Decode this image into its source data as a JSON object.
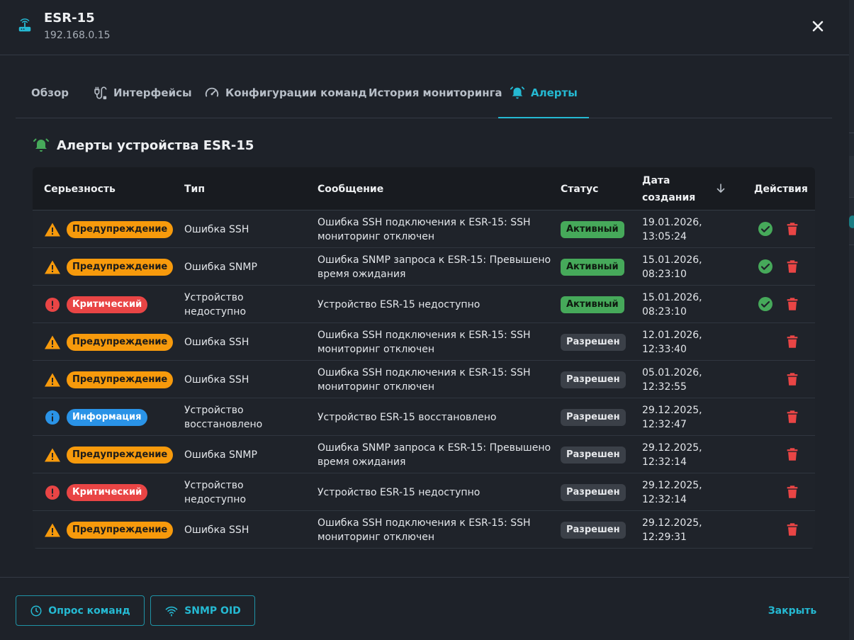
{
  "device": {
    "name": "ESR-15",
    "ip": "192.168.0.15"
  },
  "tabs": [
    {
      "label": "Обзор",
      "icon": "none",
      "active": false
    },
    {
      "label": "Интерфейсы",
      "icon": "cable-icon",
      "active": false
    },
    {
      "label": "Конфигурации команд",
      "icon": "speedometer-icon",
      "active": false
    },
    {
      "label": "История мониторинга",
      "icon": "none",
      "active": false
    },
    {
      "label": "Алерты",
      "icon": "alarm-bell-icon",
      "active": true
    }
  ],
  "section": {
    "title": "Алерты устройства ESR-15"
  },
  "table": {
    "headers": {
      "severity": "Серьезность",
      "type": "Тип",
      "message": "Сообщение",
      "status": "Статус",
      "date_line1": "Дата",
      "date_line2": "создания",
      "actions": "Действия"
    },
    "rows": [
      {
        "severity": "Предупреждение",
        "severity_kind": "warning",
        "type": "Ошибка SSH",
        "message": "Ошибка SSH подключения к ESR-15: SSH мониторинг отключен",
        "status": "Активный",
        "status_kind": "active",
        "date_line1": "19.01.2026,",
        "date_line2": "13:05:24"
      },
      {
        "severity": "Предупреждение",
        "severity_kind": "warning",
        "type": "Ошибка SNMP",
        "message": "Ошибка SNMP запроса к ESR-15: Превышено время ожидания",
        "status": "Активный",
        "status_kind": "active",
        "date_line1": "15.01.2026,",
        "date_line2": "08:23:10"
      },
      {
        "severity": "Критический",
        "severity_kind": "critical",
        "type": "Устройство недоступно",
        "message": "Устройство ESR-15 недоступно",
        "status": "Активный",
        "status_kind": "active",
        "date_line1": "15.01.2026,",
        "date_line2": "08:23:10"
      },
      {
        "severity": "Предупреждение",
        "severity_kind": "warning",
        "type": "Ошибка SSH",
        "message": "Ошибка SSH подключения к ESR-15: SSH мониторинг отключен",
        "status": "Разрешен",
        "status_kind": "resolved",
        "date_line1": "12.01.2026,",
        "date_line2": "12:33:40"
      },
      {
        "severity": "Предупреждение",
        "severity_kind": "warning",
        "type": "Ошибка SSH",
        "message": "Ошибка SSH подключения к ESR-15: SSH мониторинг отключен",
        "status": "Разрешен",
        "status_kind": "resolved",
        "date_line1": "05.01.2026,",
        "date_line2": "12:32:55"
      },
      {
        "severity": "Информация",
        "severity_kind": "info",
        "type": "Устройство восстановлено",
        "message": "Устройство ESR-15 восстановлено",
        "status": "Разрешен",
        "status_kind": "resolved",
        "date_line1": "29.12.2025,",
        "date_line2": "12:32:47"
      },
      {
        "severity": "Предупреждение",
        "severity_kind": "warning",
        "type": "Ошибка SNMP",
        "message": "Ошибка SNMP запроса к ESR-15: Превышено время ожидания",
        "status": "Разрешен",
        "status_kind": "resolved",
        "date_line1": "29.12.2025,",
        "date_line2": "12:32:14"
      },
      {
        "severity": "Критический",
        "severity_kind": "critical",
        "type": "Устройство недоступно",
        "message": "Устройство ESR-15 недоступно",
        "status": "Разрешен",
        "status_kind": "resolved",
        "date_line1": "29.12.2025,",
        "date_line2": "12:32:14"
      },
      {
        "severity": "Предупреждение",
        "severity_kind": "warning",
        "type": "Ошибка SSH",
        "message": "Ошибка SSH подключения к ESR-15: SSH мониторинг отключен",
        "status": "Разрешен",
        "status_kind": "resolved",
        "date_line1": "29.12.2025,",
        "date_line2": "12:29:31"
      }
    ]
  },
  "footer": {
    "poll_button": "Опрос команд",
    "snmp_button": "SNMP OID",
    "close_button": "Закрыть"
  },
  "colors": {
    "accent": "#25b9d2",
    "warning": "#f79a0c",
    "critical": "#e94545",
    "info": "#2a93e7",
    "active": "#46a95a"
  }
}
